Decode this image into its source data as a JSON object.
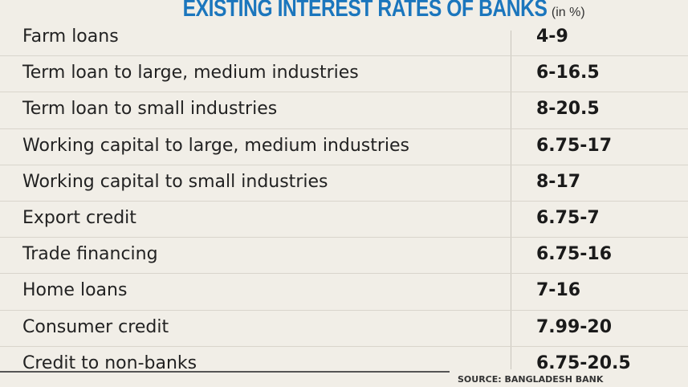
{
  "header": {
    "title": "EXISTING INTEREST RATES OF BANKS",
    "unit": "(in %)"
  },
  "table": {
    "rows": [
      [
        "Farm loans",
        "4-9"
      ],
      [
        "Term loan to large, medium industries",
        "6-16.5"
      ],
      [
        "Term loan to small industries",
        "8-20.5"
      ],
      [
        "Working capital to large, medium industries",
        "6.75-17"
      ],
      [
        "Working capital to small industries",
        "8-17"
      ],
      [
        "Export credit",
        "6.75-7"
      ],
      [
        "Trade financing",
        "6.75-16"
      ],
      [
        "Home loans",
        "7-16"
      ],
      [
        "Consumer credit",
        "7.99-20"
      ],
      [
        "Credit to non-banks",
        "6.75-20.5"
      ]
    ]
  },
  "footer": {
    "source": "SOURCE: BANGLADESH BANK"
  }
}
